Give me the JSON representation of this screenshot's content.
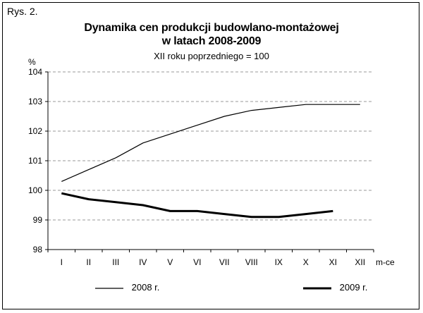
{
  "figure_label": "Rys. 2.",
  "chart_data": {
    "type": "line",
    "title_line1": "Dynamika cen produkcji budowlano-montażowej",
    "title_line2": "w latach 2008-2009",
    "subtitle": "XII roku poprzedniego = 100",
    "ylabel": "%",
    "xlabel": "m-ce",
    "ylim": [
      98,
      104
    ],
    "yticks": [
      "98",
      "99",
      "100",
      "101",
      "102",
      "103",
      "104"
    ],
    "categories": [
      "I",
      "II",
      "III",
      "IV",
      "V",
      "VI",
      "VII",
      "VIII",
      "IX",
      "X",
      "XI",
      "XII"
    ],
    "grid": true,
    "legend_position": "bottom",
    "series": [
      {
        "name": "2008 r.",
        "values": [
          100.3,
          100.7,
          101.1,
          101.6,
          101.9,
          102.2,
          102.5,
          102.7,
          102.8,
          102.9,
          102.9,
          102.9
        ],
        "color": "#000000"
      },
      {
        "name": "2009 r.",
        "values": [
          99.9,
          99.7,
          99.6,
          99.5,
          99.3,
          99.3,
          99.2,
          99.1,
          99.1,
          99.2,
          99.3,
          null
        ],
        "color": "#000000"
      }
    ]
  }
}
